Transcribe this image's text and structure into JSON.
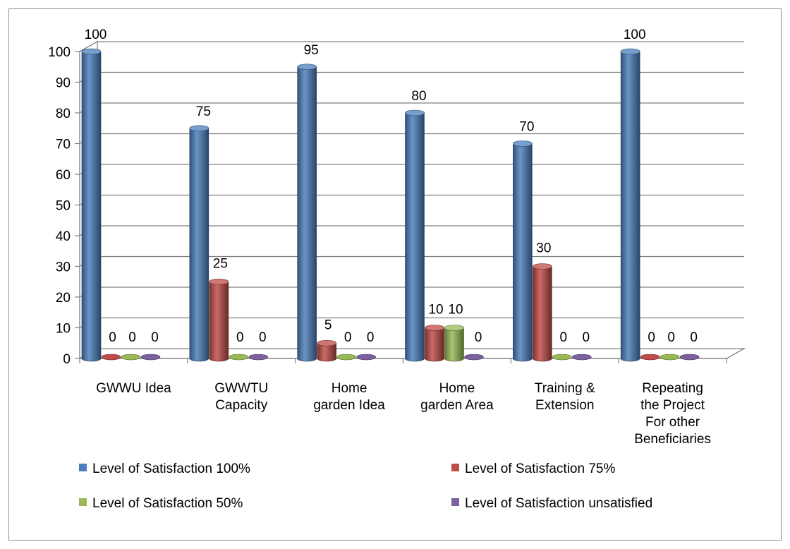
{
  "chart_data": {
    "type": "bar",
    "title": "",
    "xlabel": "",
    "ylabel": "",
    "ylim": [
      0,
      100
    ],
    "y_ticks": [
      0,
      10,
      20,
      30,
      40,
      50,
      60,
      70,
      80,
      90,
      100
    ],
    "categories": [
      [
        "GWWU Idea"
      ],
      [
        "GWWTU",
        "Capacity"
      ],
      [
        "Home",
        "garden Idea"
      ],
      [
        "Home",
        "garden Area"
      ],
      [
        "Training &",
        "Extension"
      ],
      [
        "Repeating",
        "the Project",
        "For other",
        "Beneficiaries"
      ]
    ],
    "series": [
      {
        "name": "Level of Satisfaction 100%",
        "color": "#4a7ebb",
        "values": [
          100,
          75,
          95,
          80,
          70,
          100
        ]
      },
      {
        "name": "Level of Satisfaction 75%",
        "color": "#be4b48",
        "values": [
          0,
          25,
          5,
          10,
          30,
          0
        ]
      },
      {
        "name": "Level of Satisfaction 50%",
        "color": "#98b954",
        "values": [
          0,
          0,
          0,
          10,
          0,
          0
        ]
      },
      {
        "name": "Level of Satisfaction unsatisfied",
        "color": "#7d60a0",
        "values": [
          0,
          0,
          0,
          0,
          0,
          0
        ]
      }
    ],
    "grid": true,
    "legend_position": "bottom",
    "data_labels": true,
    "style": "3d-cylinder"
  }
}
